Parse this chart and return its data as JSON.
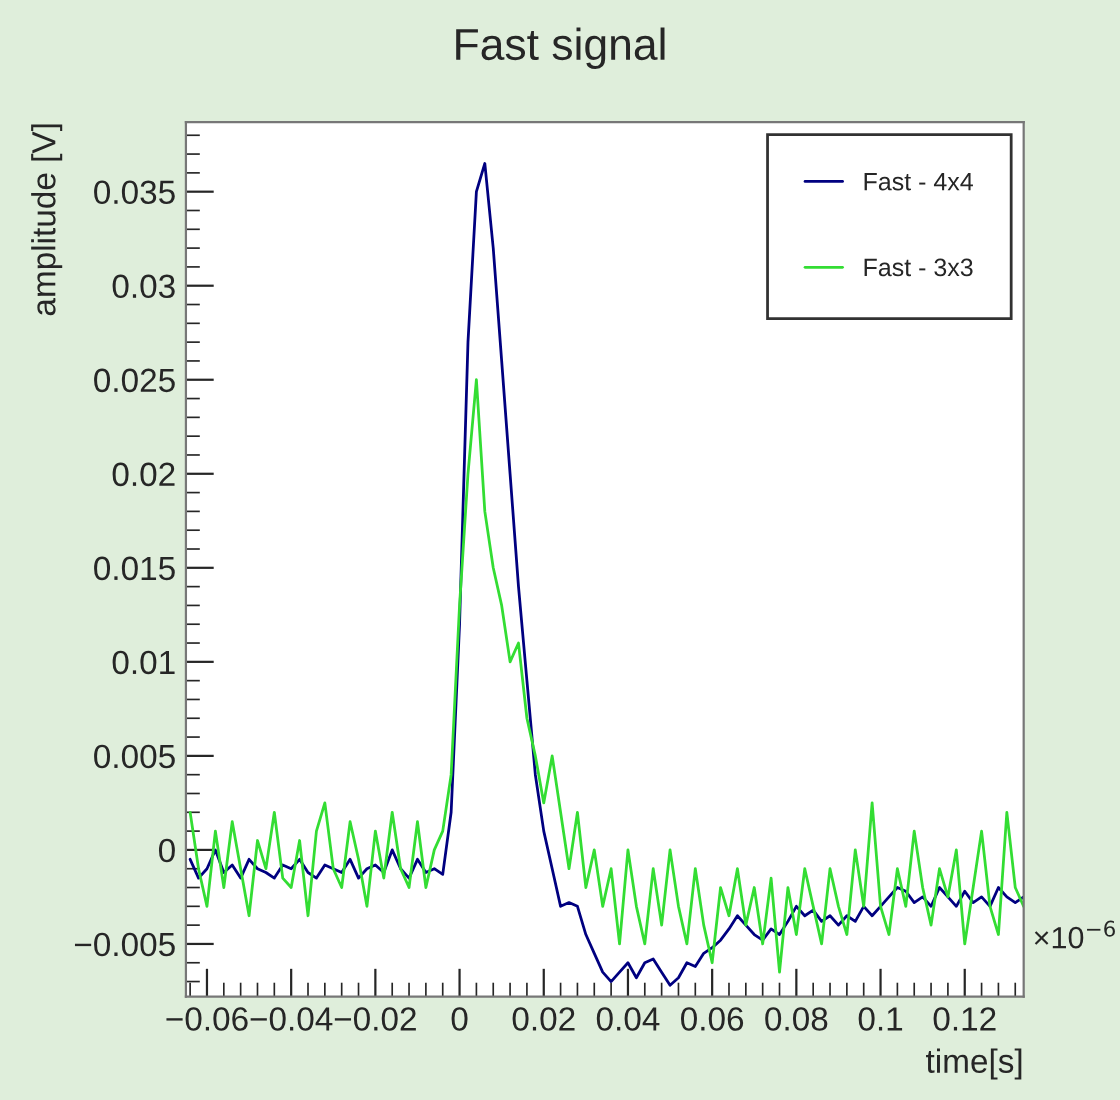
{
  "chart_data": {
    "type": "line",
    "title": "Fast signal",
    "xlabel": "time[s]",
    "ylabel": "amplitude [V]",
    "annotations": [
      "×10$^{−6}$"
    ],
    "xlim": [
      -0.065,
      0.134
    ],
    "ylim": [
      -0.0078,
      0.0387
    ],
    "xticks": [
      {
        "value": -0.06,
        "label": "−0.06"
      },
      {
        "value": -0.04,
        "label": "−0.04"
      },
      {
        "value": -0.02,
        "label": "−0.02"
      },
      0,
      0.02,
      0.04,
      0.06,
      0.08,
      0.1,
      0.12
    ],
    "yticks": [
      {
        "value": -0.005,
        "label": "−0.005"
      },
      0,
      0.005,
      0.01,
      0.015,
      0.02,
      0.025,
      0.03,
      0.035
    ],
    "grid": false,
    "legend": "top right",
    "marker": "none",
    "line_style": "solid",
    "x": [
      -0.064,
      -0.062,
      -0.06,
      -0.058,
      -0.056,
      -0.054,
      -0.052,
      -0.05,
      -0.048,
      -0.046,
      -0.044,
      -0.042,
      -0.04,
      -0.038,
      -0.036,
      -0.034,
      -0.032,
      -0.03,
      -0.028,
      -0.026,
      -0.024,
      -0.022,
      -0.02,
      -0.018,
      -0.016,
      -0.014,
      -0.012,
      -0.01,
      -0.008,
      -0.006,
      -0.004,
      -0.002,
      0.0,
      0.002,
      0.004,
      0.006,
      0.008,
      0.01,
      0.012,
      0.014,
      0.016,
      0.018,
      0.02,
      0.022,
      0.024,
      0.026,
      0.028,
      0.03,
      0.032,
      0.034,
      0.036,
      0.038,
      0.04,
      0.042,
      0.044,
      0.046,
      0.048,
      0.05,
      0.052,
      0.054,
      0.056,
      0.058,
      0.06,
      0.062,
      0.064,
      0.066,
      0.068,
      0.07,
      0.072,
      0.074,
      0.076,
      0.078,
      0.08,
      0.082,
      0.084,
      0.086,
      0.088,
      0.09,
      0.092,
      0.094,
      0.096,
      0.098,
      0.1,
      0.102,
      0.104,
      0.106,
      0.108,
      0.11,
      0.112,
      0.114,
      0.116,
      0.118,
      0.12,
      0.122,
      0.124,
      0.126,
      0.128,
      0.13,
      0.132,
      0.134
    ],
    "series": [
      {
        "name": "Fast - 4x4",
        "color": "#000080",
        "values": [
          -0.0005,
          -0.0015,
          -0.001,
          0.0,
          -0.0012,
          -0.0008,
          -0.0015,
          -0.0005,
          -0.001,
          -0.0012,
          -0.0015,
          -0.0008,
          -0.001,
          -0.0005,
          -0.0012,
          -0.0015,
          -0.0008,
          -0.001,
          -0.0012,
          -0.0005,
          -0.0015,
          -0.001,
          -0.0008,
          -0.0012,
          0.0,
          -0.001,
          -0.0015,
          -0.0005,
          -0.0012,
          -0.001,
          -0.0013,
          0.002,
          0.012,
          0.027,
          0.035,
          0.0365,
          0.032,
          0.026,
          0.02,
          0.014,
          0.009,
          0.004,
          0.001,
          -0.001,
          -0.003,
          -0.0028,
          -0.003,
          -0.0045,
          -0.0055,
          -0.0065,
          -0.007,
          -0.0065,
          -0.006,
          -0.0068,
          -0.006,
          -0.0058,
          -0.0065,
          -0.0072,
          -0.0068,
          -0.006,
          -0.0062,
          -0.0055,
          -0.0052,
          -0.0048,
          -0.0042,
          -0.0035,
          -0.004,
          -0.0045,
          -0.0048,
          -0.0042,
          -0.0045,
          -0.0038,
          -0.003,
          -0.0035,
          -0.0032,
          -0.0038,
          -0.0035,
          -0.004,
          -0.0035,
          -0.0038,
          -0.003,
          -0.0035,
          -0.003,
          -0.0025,
          -0.002,
          -0.0022,
          -0.0028,
          -0.0025,
          -0.003,
          -0.002,
          -0.0025,
          -0.003,
          -0.0022,
          -0.0028,
          -0.0025,
          -0.003,
          -0.002,
          -0.0025,
          -0.0028,
          -0.0025
        ]
      },
      {
        "name": "Fast - 3x3",
        "color": "#33dd33",
        "values": [
          0.002,
          -0.001,
          -0.003,
          0.001,
          -0.002,
          0.0015,
          -0.001,
          -0.0035,
          0.0005,
          -0.001,
          0.002,
          -0.0015,
          -0.002,
          0.0005,
          -0.0035,
          0.001,
          0.0025,
          -0.001,
          -0.002,
          0.0015,
          -0.0005,
          -0.003,
          0.001,
          -0.0015,
          0.002,
          -0.001,
          -0.002,
          0.0015,
          -0.002,
          0.0,
          0.001,
          0.004,
          0.013,
          0.02,
          0.025,
          0.018,
          0.015,
          0.013,
          0.01,
          0.011,
          0.007,
          0.005,
          0.0025,
          0.005,
          0.002,
          -0.001,
          0.002,
          -0.002,
          0.0,
          -0.003,
          -0.001,
          -0.005,
          0.0,
          -0.003,
          -0.005,
          -0.001,
          -0.004,
          0.0,
          -0.003,
          -0.005,
          -0.001,
          -0.004,
          -0.006,
          -0.002,
          -0.0035,
          -0.001,
          -0.004,
          -0.002,
          -0.005,
          -0.0015,
          -0.0065,
          -0.002,
          -0.0045,
          -0.001,
          -0.003,
          -0.005,
          -0.001,
          -0.003,
          -0.0045,
          0.0,
          -0.003,
          0.0025,
          -0.003,
          -0.0045,
          -0.001,
          -0.003,
          0.001,
          -0.002,
          -0.004,
          -0.001,
          -0.0025,
          0.0,
          -0.005,
          -0.002,
          0.001,
          -0.003,
          -0.0045,
          0.002,
          -0.002,
          -0.003
        ]
      }
    ]
  }
}
